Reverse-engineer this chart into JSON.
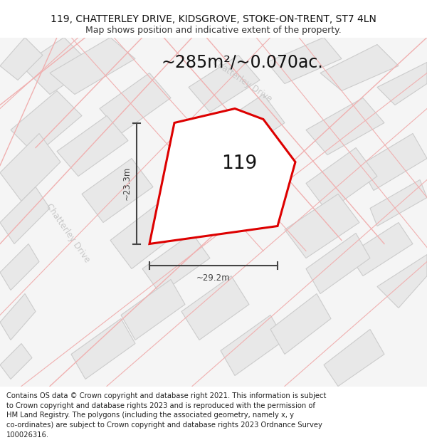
{
  "title_line1": "119, CHATTERLEY DRIVE, KIDSGROVE, STOKE-ON-TRENT, ST7 4LN",
  "title_line2": "Map shows position and indicative extent of the property.",
  "area_text": "~285m²/~0.070ac.",
  "property_number": "119",
  "dim_vertical": "~23.3m",
  "dim_horizontal": "~29.2m",
  "road_label_upper": "Chatterley Drive",
  "road_label_lower": "Chatterley Drive",
  "footnote": "Contains OS data © Crown copyright and database right 2021. This information is subject\nto Crown copyright and database rights 2023 and is reproduced with the permission of\nHM Land Registry. The polygons (including the associated geometry, namely x, y\nco-ordinates) are subject to Crown copyright and database rights 2023 Ordnance Survey\n100026316.",
  "map_bg": "#f5f5f5",
  "block_fc": "#e8e8e8",
  "block_ec": "#cccccc",
  "road_line_color": "#f0b0b0",
  "road_text_color": "#c8c8c8",
  "property_fill": "#ffffff",
  "property_edge": "#dd0000",
  "dim_color": "#444444",
  "title_fontsize": 10,
  "subtitle_fontsize": 9,
  "area_fontsize": 17,
  "footnote_fontsize": 7.2
}
